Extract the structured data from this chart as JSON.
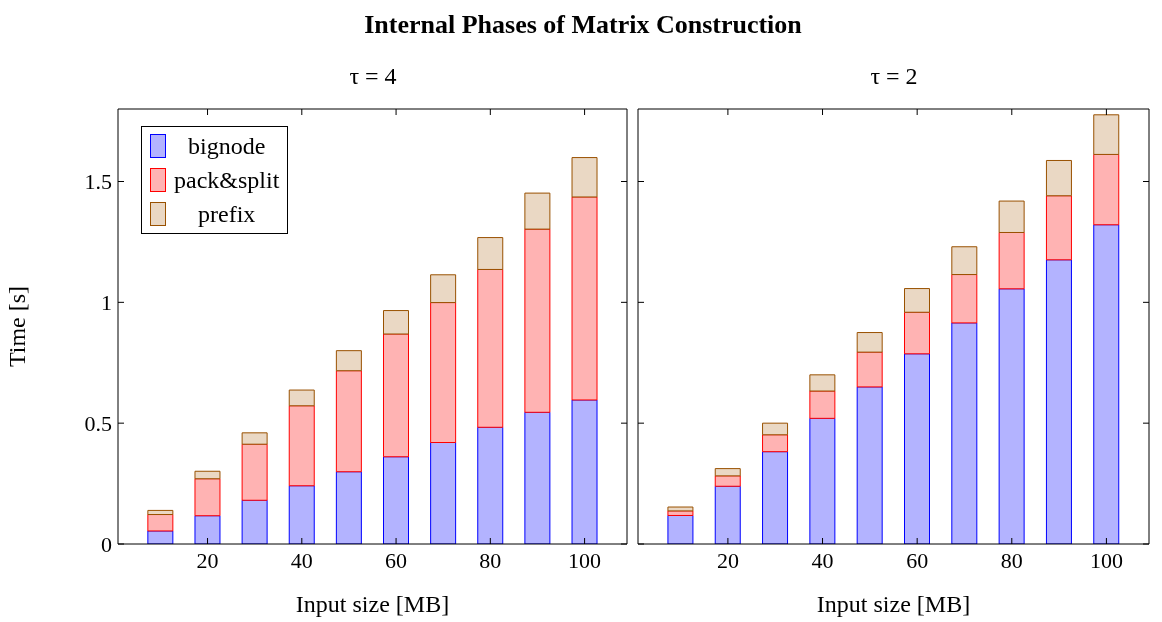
{
  "chart_data": [
    {
      "type": "bar",
      "title": "Internal Phases of Matrix Construction",
      "subtitle": "τ = 4",
      "xlabel": "Input size [MB]",
      "ylabel": "Time [s]",
      "x": [
        10,
        20,
        30,
        40,
        50,
        60,
        70,
        80,
        90,
        100
      ],
      "stacked": true,
      "xlim": [
        1,
        109
      ],
      "xticks": [
        20,
        40,
        60,
        80,
        100
      ],
      "ylim": [
        0,
        1.8
      ],
      "yticks": [
        0,
        0.5,
        1,
        1.5
      ],
      "legend": "top left",
      "grid": false,
      "series": [
        {
          "name": "bignode",
          "color": "#b3b3ff",
          "values": [
            0.054,
            0.117,
            0.181,
            0.241,
            0.299,
            0.361,
            0.42,
            0.483,
            0.545,
            0.596
          ]
        },
        {
          "name": "pack&split",
          "color": "#ffb3b3",
          "values": [
            0.068,
            0.153,
            0.232,
            0.331,
            0.418,
            0.508,
            0.579,
            0.653,
            0.758,
            0.84
          ]
        },
        {
          "name": "prefix",
          "color": "#ead8c4",
          "values": [
            0.017,
            0.031,
            0.047,
            0.065,
            0.083,
            0.097,
            0.115,
            0.132,
            0.149,
            0.163
          ]
        }
      ]
    },
    {
      "type": "bar",
      "subtitle": "τ = 2",
      "xlabel": "Input size [MB]",
      "x": [
        10,
        20,
        30,
        40,
        50,
        60,
        70,
        80,
        90,
        100
      ],
      "stacked": true,
      "xlim": [
        1,
        109
      ],
      "xticks": [
        20,
        40,
        60,
        80,
        100
      ],
      "ylim": [
        0,
        1.8
      ],
      "yticks": [
        0,
        0.5,
        1,
        1.5
      ],
      "tick_labels": "x",
      "legend": false,
      "grid": false,
      "series": [
        {
          "color": "#b3b3ff",
          "values": [
            0.118,
            0.239,
            0.382,
            0.52,
            0.65,
            0.787,
            0.915,
            1.056,
            1.176,
            1.321
          ]
        },
        {
          "color": "#ffb3b3",
          "values": [
            0.019,
            0.043,
            0.07,
            0.113,
            0.144,
            0.172,
            0.2,
            0.233,
            0.265,
            0.291
          ]
        },
        {
          "color": "#ead8c4",
          "values": [
            0.016,
            0.03,
            0.048,
            0.067,
            0.081,
            0.098,
            0.115,
            0.13,
            0.146,
            0.164
          ]
        }
      ]
    }
  ]
}
